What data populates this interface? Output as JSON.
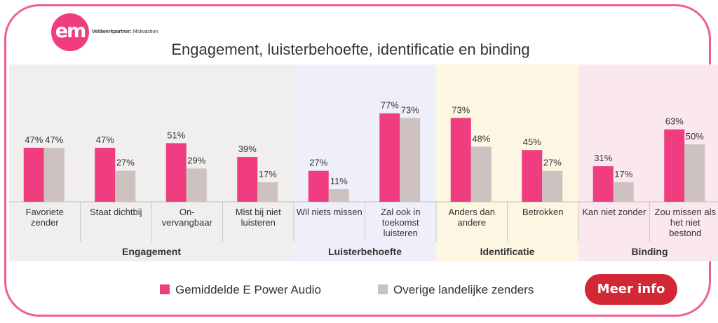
{
  "header": {
    "logo_text": "em",
    "partner_label": "Veldwerkpartner:",
    "partner_name": "Motivaction"
  },
  "chart_data": {
    "type": "bar",
    "title": "Engagement, luisterbehoefte, identificatie en binding",
    "ylim": [
      0,
      100
    ],
    "grid": false,
    "legend_position": "bottom",
    "categories": [
      [
        "Favoriete",
        "zender"
      ],
      [
        "Staat dichtbij"
      ],
      [
        "On-",
        "vervangbaar"
      ],
      [
        "Mist bij niet",
        "luisteren"
      ],
      [
        "Wil niets missen"
      ],
      [
        "Zal ook in",
        "toekomst",
        "luisteren"
      ],
      [
        "Anders dan",
        "andere"
      ],
      [
        "Betrokken"
      ],
      [
        "Kan niet zonder"
      ],
      [
        "Zou missen als",
        "het niet",
        "bestond"
      ]
    ],
    "series": [
      {
        "name": "Gemiddelde E Power Audio",
        "color": "#f03d7f",
        "values": [
          47,
          47,
          51,
          39,
          27,
          77,
          73,
          45,
          31,
          63
        ]
      },
      {
        "name": "Overige landelijke zenders",
        "color": "#cdc2c0",
        "values": [
          47,
          27,
          29,
          17,
          11,
          73,
          48,
          27,
          17,
          50
        ]
      }
    ],
    "groups": [
      {
        "label": "Engagement",
        "start": 0,
        "end": 3,
        "background": "#f1eeee"
      },
      {
        "label": "Luisterbehoefte",
        "start": 4,
        "end": 5,
        "background": "#efeffc"
      },
      {
        "label": "Identificatie",
        "start": 6,
        "end": 7,
        "background": "#fdf6e3"
      },
      {
        "label": "Binding",
        "start": 8,
        "end": 9,
        "background": "#fbe8ee"
      }
    ]
  },
  "button": {
    "label": "Meer info"
  }
}
